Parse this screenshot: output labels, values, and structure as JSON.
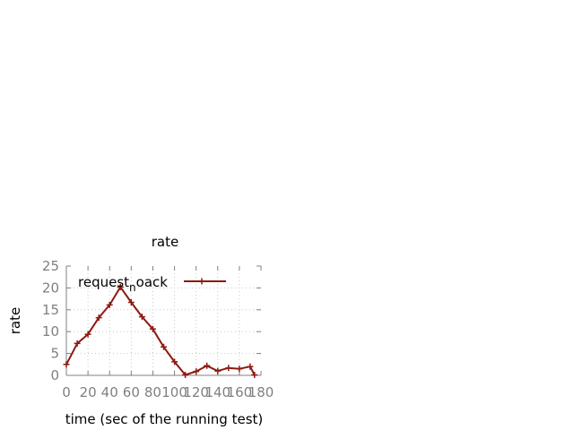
{
  "chart_data": {
    "type": "line",
    "title": "rate",
    "xlabel": "time (sec of the running test)",
    "ylabel": "rate",
    "xlim": [
      0,
      180
    ],
    "ylim": [
      0,
      25
    ],
    "xticks": [
      "0",
      "20",
      "40",
      "60",
      "80",
      "100",
      "120",
      "140",
      "160",
      "180"
    ],
    "yticks": [
      "0",
      "5",
      "10",
      "15",
      "20",
      "25"
    ],
    "grid": true,
    "legend_position": "top-left",
    "series": [
      {
        "name": "request_n oack",
        "name_parts": [
          "request",
          "n",
          "oack"
        ],
        "color": "#8b1a10",
        "marker": "plus",
        "x": [
          0,
          10,
          20,
          30,
          40,
          50,
          60,
          70,
          80,
          90,
          100,
          110,
          120,
          130,
          140,
          150,
          160,
          170,
          174
        ],
        "y": [
          2.5,
          7.3,
          9.4,
          13.2,
          16.1,
          20.2,
          16.7,
          13.4,
          10.6,
          6.5,
          3.1,
          0.1,
          0.9,
          2.2,
          1.0,
          1.7,
          1.5,
          2.0,
          0.1
        ]
      }
    ]
  }
}
